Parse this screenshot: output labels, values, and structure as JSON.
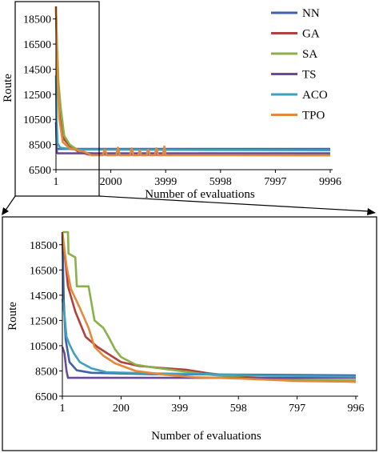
{
  "chart_data": [
    {
      "type": "line",
      "title": "",
      "xlabel": "Number of evaluations",
      "ylabel": "Route",
      "xlim": [
        1,
        9996
      ],
      "ylim": [
        6500,
        19500
      ],
      "xticks": [
        1,
        2000,
        3999,
        5998,
        7997,
        9996
      ],
      "yticks": [
        6500,
        8500,
        10500,
        12500,
        14500,
        16500,
        18500
      ],
      "tick_labels_x": [
        "1",
        "2000",
        "3999",
        "5998",
        "7997",
        "9996"
      ],
      "tick_labels_y": [
        "6500",
        "8500",
        "10500",
        "12500",
        "14500",
        "16500",
        "18500"
      ],
      "grid": false,
      "legend_position": "top-right",
      "series": [
        {
          "name": "NN",
          "color": "#3E63A6",
          "points": [
            [
              1,
              8150
            ],
            [
              9996,
              8150
            ]
          ]
        },
        {
          "name": "GA",
          "color": "#B2403C",
          "points": [
            [
              1,
              19500
            ],
            [
              70,
              13000
            ],
            [
              150,
              10500
            ],
            [
              300,
              8900
            ],
            [
              500,
              8400
            ],
            [
              800,
              7950
            ],
            [
              1200,
              7700
            ],
            [
              9996,
              7650
            ]
          ]
        },
        {
          "name": "SA",
          "color": "#8BB04A",
          "points": [
            [
              1,
              19500
            ],
            [
              40,
              16500
            ],
            [
              90,
              13500
            ],
            [
              170,
              11500
            ],
            [
              300,
              9200
            ],
            [
              500,
              8500
            ],
            [
              900,
              7900
            ],
            [
              1500,
              7750
            ],
            [
              9996,
              7750
            ]
          ]
        },
        {
          "name": "TS",
          "color": "#6B4B99",
          "points": [
            [
              1,
              10300
            ],
            [
              15,
              9200
            ],
            [
              30,
              7950
            ],
            [
              60,
              7800
            ],
            [
              9996,
              7800
            ]
          ]
        },
        {
          "name": "ACO",
          "color": "#3FA1BF",
          "points": [
            [
              1,
              14000
            ],
            [
              20,
              10500
            ],
            [
              60,
              8600
            ],
            [
              150,
              8250
            ],
            [
              700,
              8100
            ],
            [
              9996,
              8050
            ]
          ]
        },
        {
          "name": "TPO",
          "color": "#E4883A",
          "points": [
            [
              1,
              19500
            ],
            [
              50,
              14000
            ],
            [
              120,
              10600
            ],
            [
              250,
              8700
            ],
            [
              500,
              8200
            ],
            [
              1000,
              7950
            ],
            [
              1300,
              7650
            ],
            [
              1700,
              7650
            ],
            [
              1780,
              8100
            ],
            [
              1860,
              7650
            ],
            [
              2200,
              7650
            ],
            [
              2260,
              8250
            ],
            [
              2330,
              7650
            ],
            [
              2700,
              7650
            ],
            [
              2760,
              8200
            ],
            [
              2830,
              7650
            ],
            [
              3000,
              7650
            ],
            [
              3050,
              8050
            ],
            [
              3120,
              7650
            ],
            [
              3300,
              7650
            ],
            [
              3360,
              8100
            ],
            [
              3430,
              7650
            ],
            [
              3600,
              7650
            ],
            [
              3660,
              8200
            ],
            [
              3730,
              7650
            ],
            [
              3900,
              7650
            ],
            [
              3950,
              8350
            ],
            [
              4000,
              7650
            ],
            [
              9996,
              7650
            ]
          ]
        }
      ]
    },
    {
      "type": "line",
      "title": "",
      "xlabel": "Number of evaluations",
      "ylabel": "Route",
      "xlim": [
        1,
        996
      ],
      "ylim": [
        6500,
        19500
      ],
      "xticks": [
        1,
        200,
        399,
        598,
        797,
        996
      ],
      "yticks": [
        6500,
        8500,
        10500,
        12500,
        14500,
        16500,
        18500
      ],
      "tick_labels_x": [
        "1",
        "200",
        "399",
        "598",
        "797",
        "996"
      ],
      "tick_labels_y": [
        "6500",
        "8500",
        "10500",
        "12500",
        "14500",
        "16500",
        "18500"
      ],
      "grid": false,
      "series": [
        {
          "name": "NN",
          "color": "#3E63A6",
          "points": [
            [
              1,
              19500
            ],
            [
              6,
              14000
            ],
            [
              12,
              11000
            ],
            [
              25,
              9200
            ],
            [
              50,
              8550
            ],
            [
              100,
              8350
            ],
            [
              200,
              8300
            ],
            [
              300,
              8250
            ],
            [
              996,
              8150
            ]
          ]
        },
        {
          "name": "GA",
          "color": "#B2403C",
          "points": [
            [
              1,
              19500
            ],
            [
              20,
              15200
            ],
            [
              45,
              13200
            ],
            [
              80,
              11200
            ],
            [
              120,
              10400
            ],
            [
              160,
              9800
            ],
            [
              200,
              9200
            ],
            [
              260,
              8900
            ],
            [
              330,
              8750
            ],
            [
              420,
              8600
            ],
            [
              500,
              8300
            ],
            [
              600,
              8050
            ],
            [
              700,
              7900
            ],
            [
              800,
              7800
            ],
            [
              900,
              7700
            ],
            [
              996,
              7650
            ]
          ]
        },
        {
          "name": "SA",
          "color": "#8BB04A",
          "points": [
            [
              1,
              19500
            ],
            [
              20,
              19500
            ],
            [
              22,
              17800
            ],
            [
              45,
              17500
            ],
            [
              50,
              15200
            ],
            [
              90,
              15200
            ],
            [
              110,
              12500
            ],
            [
              140,
              11900
            ],
            [
              160,
              11100
            ],
            [
              180,
              10200
            ],
            [
              200,
              9600
            ],
            [
              250,
              9000
            ],
            [
              300,
              8800
            ],
            [
              400,
              8500
            ],
            [
              500,
              8200
            ],
            [
              600,
              8000
            ],
            [
              700,
              7850
            ],
            [
              800,
              7780
            ],
            [
              996,
              7750
            ]
          ]
        },
        {
          "name": "TS",
          "color": "#6B4B99",
          "points": [
            [
              1,
              10400
            ],
            [
              8,
              9900
            ],
            [
              15,
              8500
            ],
            [
              20,
              7950
            ],
            [
              996,
              7950
            ]
          ]
        },
        {
          "name": "ACO",
          "color": "#3FA1BF",
          "points": [
            [
              1,
              14200
            ],
            [
              8,
              13000
            ],
            [
              15,
              11200
            ],
            [
              25,
              10600
            ],
            [
              40,
              9900
            ],
            [
              60,
              9200
            ],
            [
              100,
              8700
            ],
            [
              150,
              8400
            ],
            [
              300,
              8300
            ],
            [
              500,
              8250
            ],
            [
              650,
              8150
            ],
            [
              996,
              8050
            ]
          ]
        },
        {
          "name": "TPO",
          "color": "#E4883A",
          "points": [
            [
              1,
              19500
            ],
            [
              15,
              16800
            ],
            [
              30,
              15000
            ],
            [
              60,
              13500
            ],
            [
              90,
              11900
            ],
            [
              110,
              10400
            ],
            [
              140,
              9700
            ],
            [
              180,
              9100
            ],
            [
              250,
              8500
            ],
            [
              350,
              8200
            ],
            [
              450,
              8000
            ],
            [
              600,
              7900
            ],
            [
              700,
              7800
            ],
            [
              800,
              7700
            ],
            [
              996,
              7650
            ]
          ]
        }
      ]
    }
  ]
}
